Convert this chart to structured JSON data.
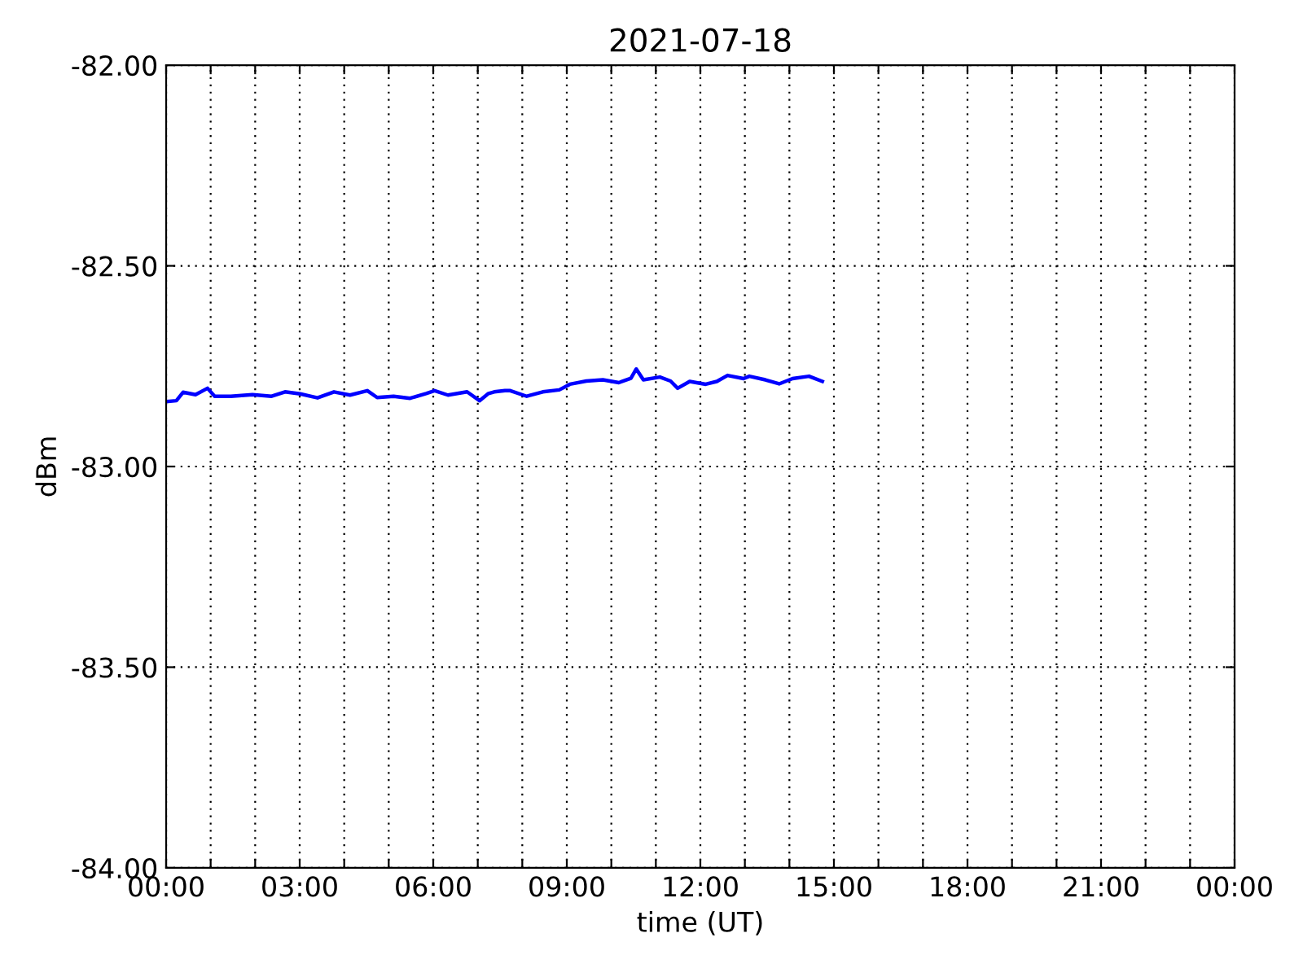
{
  "chart_data": {
    "type": "line",
    "title": "2021-07-18",
    "xlabel": "time (UT)",
    "ylabel": "dBm",
    "x": [
      0.01,
      0.23,
      0.38,
      0.66,
      0.93,
      1.09,
      1.45,
      1.94,
      2.37,
      2.67,
      3.01,
      3.4,
      3.77,
      4.13,
      4.52,
      4.74,
      5.11,
      5.48,
      5.84,
      6.03,
      6.33,
      6.76,
      7.04,
      7.24,
      7.37,
      7.61,
      7.73,
      8.1,
      8.46,
      8.83,
      9.07,
      9.44,
      9.81,
      10.17,
      10.44,
      10.56,
      10.72,
      11.09,
      11.33,
      11.49,
      11.76,
      12.12,
      12.37,
      12.61,
      12.97,
      13.1,
      13.46,
      13.77,
      14.07,
      14.44,
      14.74
    ],
    "series": [
      {
        "color": "#0000ff",
        "values": [
          -82.838,
          -82.836,
          -82.815,
          -82.821,
          -82.805,
          -82.825,
          -82.825,
          -82.821,
          -82.825,
          -82.814,
          -82.819,
          -82.829,
          -82.814,
          -82.822,
          -82.811,
          -82.828,
          -82.825,
          -82.83,
          -82.818,
          -82.811,
          -82.822,
          -82.814,
          -82.836,
          -82.818,
          -82.814,
          -82.811,
          -82.811,
          -82.825,
          -82.814,
          -82.809,
          -82.795,
          -82.787,
          -82.784,
          -82.791,
          -82.78,
          -82.757,
          -82.784,
          -82.777,
          -82.787,
          -82.805,
          -82.788,
          -82.795,
          -82.788,
          -82.773,
          -82.781,
          -82.775,
          -82.784,
          -82.794,
          -82.781,
          -82.775,
          -82.788
        ]
      }
    ],
    "xlim": [
      0,
      24
    ],
    "ylim": [
      -84,
      -82
    ],
    "xticks": [
      {
        "value": 0,
        "label": "00:00"
      },
      {
        "value": 1,
        "label": null
      },
      {
        "value": 2,
        "label": null
      },
      {
        "value": 3,
        "label": "03:00"
      },
      {
        "value": 4,
        "label": null
      },
      {
        "value": 5,
        "label": null
      },
      {
        "value": 6,
        "label": "06:00"
      },
      {
        "value": 7,
        "label": null
      },
      {
        "value": 8,
        "label": null
      },
      {
        "value": 9,
        "label": "09:00"
      },
      {
        "value": 10,
        "label": null
      },
      {
        "value": 11,
        "label": null
      },
      {
        "value": 12,
        "label": "12:00"
      },
      {
        "value": 13,
        "label": null
      },
      {
        "value": 14,
        "label": null
      },
      {
        "value": 15,
        "label": "15:00"
      },
      {
        "value": 16,
        "label": null
      },
      {
        "value": 17,
        "label": null
      },
      {
        "value": 18,
        "label": "18:00"
      },
      {
        "value": 19,
        "label": null
      },
      {
        "value": 20,
        "label": null
      },
      {
        "value": 21,
        "label": "21:00"
      },
      {
        "value": 22,
        "label": null
      },
      {
        "value": 23,
        "label": null
      },
      {
        "value": 24,
        "label": "00:00"
      }
    ],
    "yticks": [
      {
        "value": -84,
        "label": "-84.00"
      },
      {
        "value": -83.5,
        "label": "-83.50"
      },
      {
        "value": -83,
        "label": "-83.00"
      },
      {
        "value": -82.5,
        "label": "-82.50"
      },
      {
        "value": -82,
        "label": "-82.00"
      }
    ],
    "grid": true,
    "line_style": "solid"
  }
}
